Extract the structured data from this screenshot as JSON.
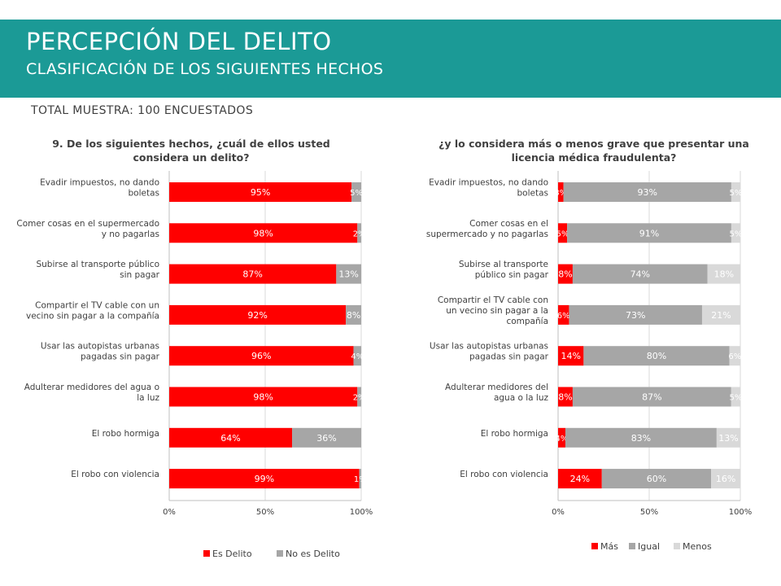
{
  "header": {
    "title": "PERCEPCIÓN DEL DELITO",
    "subtitle": "CLASIFICACIÓN DE LOS SIGUIENTES HECHOS"
  },
  "sample_text": "TOTAL MUESTRA: 100 ENCUESTADOS",
  "colors": {
    "banner": "#1b9a96",
    "red": "#ff0000",
    "gray": "#a6a6a6",
    "lightgray": "#d9d9d9"
  },
  "chart_data": [
    {
      "type": "bar",
      "orientation": "horizontal",
      "stacked": true,
      "title": "9. De los siguientes hechos, ¿cuál de ellos usted considera un delito?",
      "categories": [
        "Evadir impuestos, no dando boletas",
        "Comer cosas en el supermercado y no pagarlas",
        "Subirse al transporte público sin pagar",
        "Compartir el TV cable con un vecino sin pagar a la compañía",
        "Usar las autopistas urbanas pagadas sin pagar",
        "Adulterar medidores del agua o la luz",
        "El robo hormiga",
        "El robo con violencia"
      ],
      "series": [
        {
          "name": "Es Delito",
          "values": [
            95,
            98,
            87,
            92,
            96,
            98,
            64,
            99
          ],
          "labels": [
            "95%",
            "98%",
            "87%",
            "92%",
            "96%",
            "98%",
            "64%",
            "99%"
          ]
        },
        {
          "name": "No es Delito",
          "values": [
            5,
            2,
            13,
            8,
            4,
            2,
            36,
            1
          ],
          "labels": [
            "5%",
            "2%",
            "13%",
            "8%",
            "4%",
            "2%",
            "36%",
            "1%"
          ]
        }
      ],
      "xlim": [
        0,
        100
      ],
      "xticks": [
        "0%",
        "50%",
        "100%"
      ],
      "legend": "bottom"
    },
    {
      "type": "bar",
      "orientation": "horizontal",
      "stacked": true,
      "title": "¿y lo considera más o menos grave que presentar una licencia médica fraudulenta?",
      "categories": [
        "Evadir impuestos, no dando boletas",
        "Comer cosas en el supermercado y no pagarlas",
        "Subirse al transporte público sin pagar",
        "Compartir el TV cable con un vecino sin pagar a la compañía",
        "Usar las autopistas urbanas pagadas sin pagar",
        "Adulterar medidores del agua o la luz",
        "El robo hormiga",
        "El robo con violencia"
      ],
      "series": [
        {
          "name": "Más",
          "values": [
            3,
            5,
            8,
            6,
            14,
            8,
            4,
            24
          ],
          "labels": [
            "3%",
            "5%",
            "8%",
            "6%",
            "14%",
            "8%",
            "4%",
            "24%"
          ]
        },
        {
          "name": "Igual",
          "values": [
            93,
            91,
            74,
            73,
            80,
            87,
            83,
            60
          ],
          "labels": [
            "93%",
            "91%",
            "74%",
            "73%",
            "80%",
            "87%",
            "83%",
            "60%"
          ]
        },
        {
          "name": "Menos",
          "values": [
            5,
            5,
            18,
            21,
            6,
            5,
            13,
            16
          ],
          "labels": [
            "5%",
            "5%",
            "18%",
            "21%",
            "6%",
            "5%",
            "13%",
            "16%"
          ]
        }
      ],
      "xlim": [
        0,
        100
      ],
      "xticks": [
        "0%",
        "50%",
        "100%"
      ],
      "legend": "bottom"
    }
  ]
}
